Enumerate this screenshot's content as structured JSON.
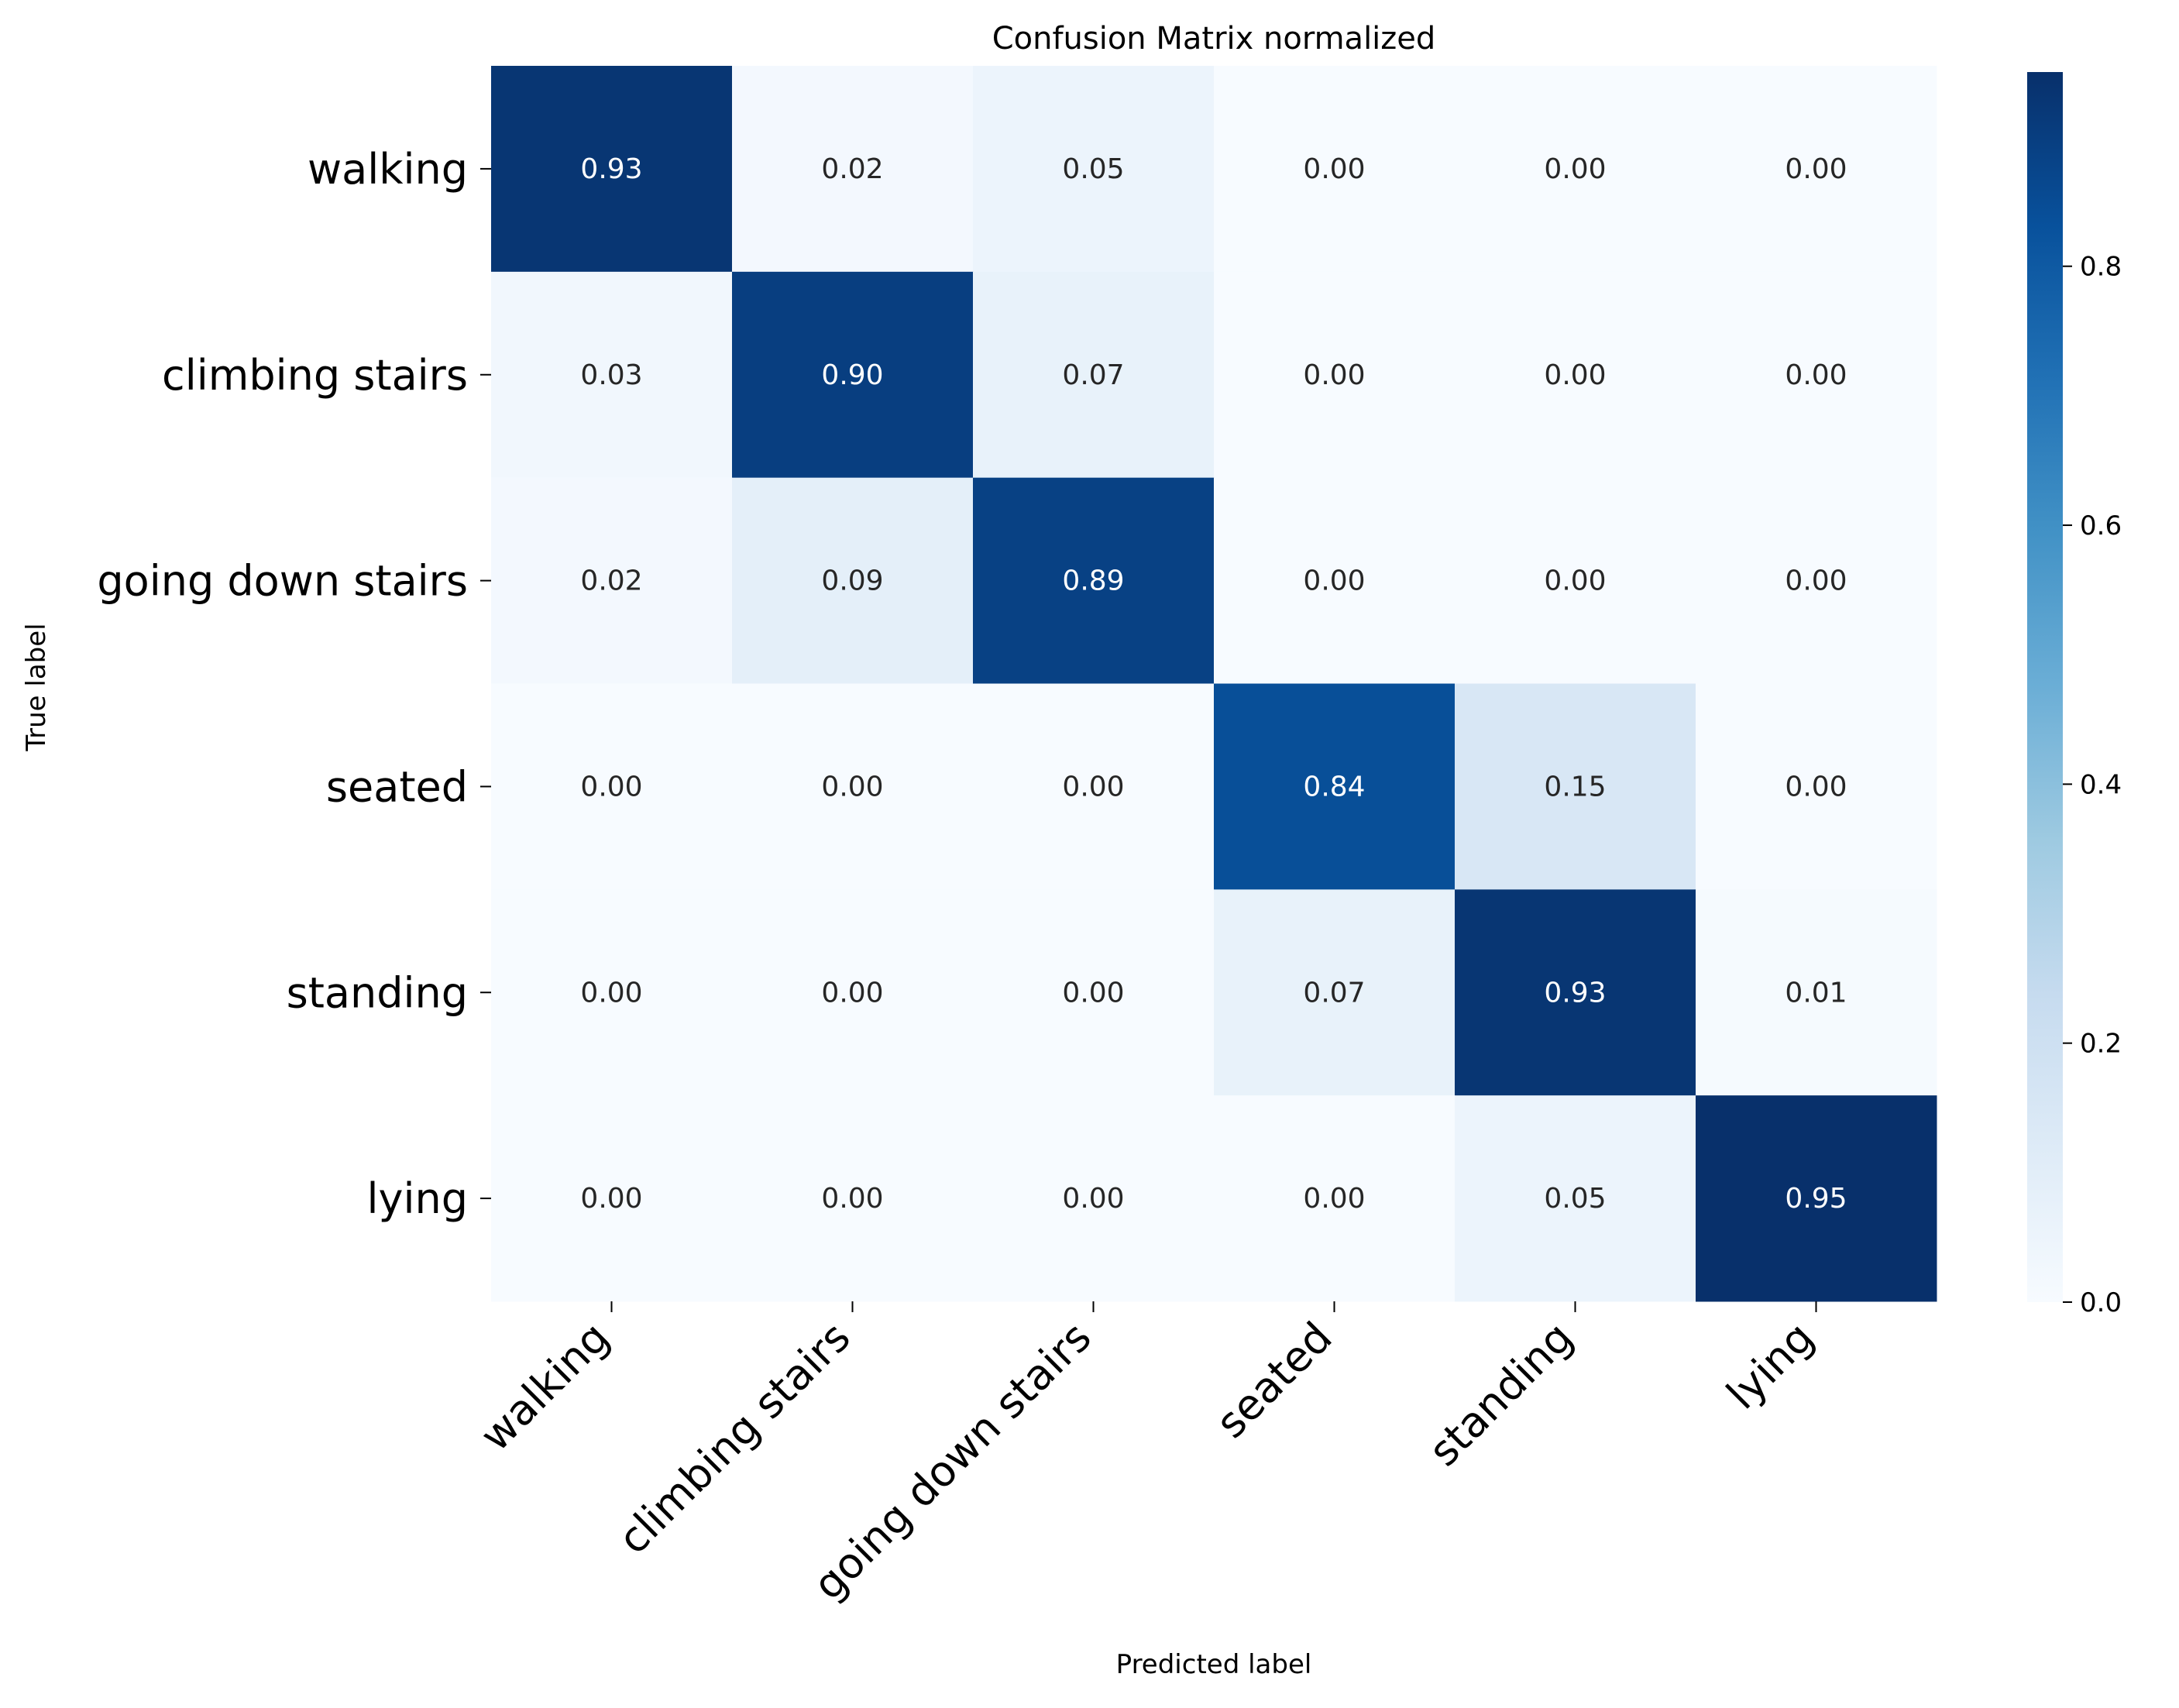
{
  "chart_data": {
    "type": "heatmap",
    "title": "Confusion Matrix normalized",
    "xlabel": "Predicted label",
    "ylabel": "True label",
    "x_categories": [
      "walking",
      "climbing stairs",
      "going down stairs",
      "seated",
      "standing",
      "lying"
    ],
    "y_categories": [
      "walking",
      "climbing stairs",
      "going down stairs",
      "seated",
      "standing",
      "lying"
    ],
    "values": [
      [
        0.93,
        0.02,
        0.05,
        0.0,
        0.0,
        0.0
      ],
      [
        0.03,
        0.9,
        0.07,
        0.0,
        0.0,
        0.0
      ],
      [
        0.02,
        0.09,
        0.89,
        0.0,
        0.0,
        0.0
      ],
      [
        0.0,
        0.0,
        0.0,
        0.84,
        0.15,
        0.0
      ],
      [
        0.0,
        0.0,
        0.0,
        0.07,
        0.93,
        0.01
      ],
      [
        0.0,
        0.0,
        0.0,
        0.0,
        0.05,
        0.95
      ]
    ],
    "value_format": "0.00",
    "colormap": "Blues",
    "colorbar": {
      "range": [
        0.0,
        0.95
      ],
      "ticks": [
        0.0,
        0.2,
        0.4,
        0.6,
        0.8
      ],
      "tick_labels": [
        "0.0",
        "0.2",
        "0.4",
        "0.6",
        "0.8"
      ]
    },
    "grid": false
  }
}
